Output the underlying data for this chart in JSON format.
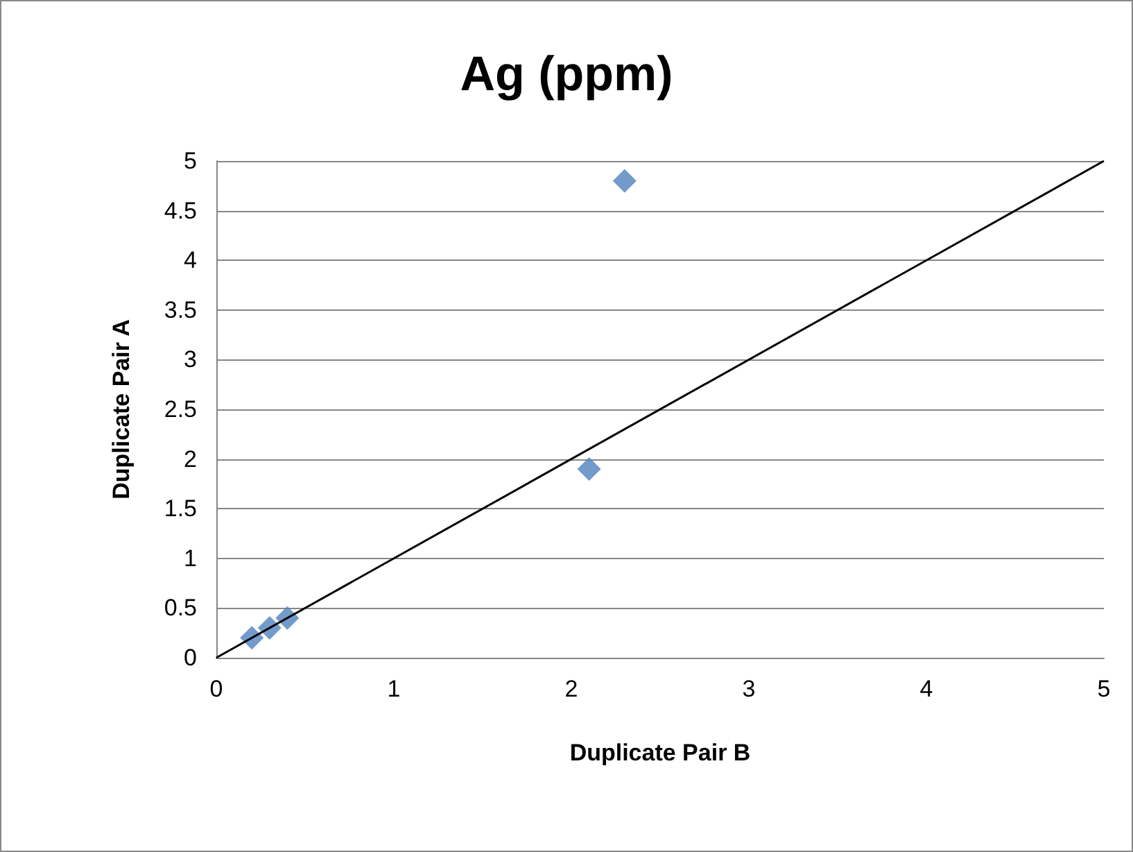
{
  "chart_data": {
    "type": "scatter",
    "title": "Ag (ppm)",
    "xlabel": "Duplicate Pair B",
    "ylabel": "Duplicate Pair A",
    "x": [
      0.2,
      0.3,
      0.4,
      2.1,
      2.3
    ],
    "series": [
      {
        "color": "#4f81bd",
        "values": [
          0.2,
          0.3,
          0.4,
          1.9,
          4.8
        ]
      },
      {
        "type": "line",
        "color": "#000000",
        "x": [
          0,
          5
        ],
        "values": [
          0,
          5
        ],
        "marker": "none"
      }
    ],
    "xlim": [
      0,
      5
    ],
    "xticks": [
      0,
      1,
      2,
      3,
      4,
      5
    ],
    "ylim": [
      0,
      5
    ],
    "yticks": [
      0,
      0.5,
      1,
      1.5,
      2,
      2.5,
      3,
      3.5,
      4,
      4.5,
      5
    ],
    "grid": "y",
    "marker": "diamond"
  }
}
